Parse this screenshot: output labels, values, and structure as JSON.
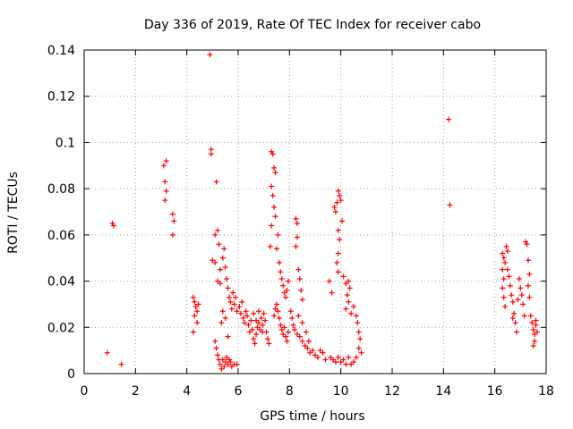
{
  "chart_data": {
    "type": "scatter",
    "title": "Day 336 of 2019, Rate Of TEC Index for receiver cabo",
    "xlabel": "GPS time / hours",
    "ylabel": "ROTI / TECUs",
    "xlim": [
      0,
      18
    ],
    "ylim": [
      0,
      0.14
    ],
    "xticks": [
      0,
      2,
      4,
      6,
      8,
      10,
      12,
      14,
      16,
      18
    ],
    "xtick_labels": [
      "0",
      "2",
      "4",
      "6",
      "8",
      "10",
      "12",
      "14",
      "16",
      "18"
    ],
    "yticks": [
      0,
      0.02,
      0.04,
      0.06,
      0.08,
      0.1,
      0.12,
      0.14
    ],
    "ytick_labels": [
      "0",
      "0.02",
      "0.04",
      "0.06",
      "0.08",
      "0.1",
      "0.12",
      "0.14"
    ],
    "grid": true,
    "marker": "+",
    "color": "#ff0000",
    "series": [
      {
        "name": "ROTI",
        "points": [
          [
            0.9,
            0.009
          ],
          [
            1.1,
            0.065
          ],
          [
            1.15,
            0.064
          ],
          [
            1.45,
            0.004
          ],
          [
            3.1,
            0.09
          ],
          [
            3.15,
            0.083
          ],
          [
            3.2,
            0.079
          ],
          [
            3.15,
            0.075
          ],
          [
            3.2,
            0.092
          ],
          [
            3.45,
            0.069
          ],
          [
            3.5,
            0.066
          ],
          [
            3.45,
            0.06
          ],
          [
            4.25,
            0.033
          ],
          [
            4.3,
            0.031
          ],
          [
            4.35,
            0.029
          ],
          [
            4.4,
            0.027
          ],
          [
            4.3,
            0.025
          ],
          [
            4.25,
            0.018
          ],
          [
            4.4,
            0.022
          ],
          [
            4.45,
            0.03
          ],
          [
            4.9,
            0.138
          ],
          [
            4.95,
            0.097
          ],
          [
            4.95,
            0.095
          ],
          [
            5.0,
            0.049
          ],
          [
            5.1,
            0.06
          ],
          [
            5.15,
            0.083
          ],
          [
            5.2,
            0.062
          ],
          [
            5.25,
            0.056
          ],
          [
            5.1,
            0.048
          ],
          [
            5.2,
            0.04
          ],
          [
            5.3,
            0.045
          ],
          [
            5.3,
            0.039
          ],
          [
            5.4,
            0.05
          ],
          [
            5.45,
            0.054
          ],
          [
            5.5,
            0.046
          ],
          [
            5.55,
            0.041
          ],
          [
            5.6,
            0.037
          ],
          [
            5.65,
            0.033
          ],
          [
            5.7,
            0.031
          ],
          [
            5.75,
            0.028
          ],
          [
            5.8,
            0.035
          ],
          [
            5.85,
            0.03
          ],
          [
            5.9,
            0.033
          ],
          [
            5.95,
            0.027
          ],
          [
            5.1,
            0.014
          ],
          [
            5.15,
            0.011
          ],
          [
            5.2,
            0.008
          ],
          [
            5.25,
            0.006
          ],
          [
            5.3,
            0.004
          ],
          [
            5.35,
            0.002
          ],
          [
            5.4,
            0.006
          ],
          [
            5.45,
            0.003
          ],
          [
            5.5,
            0.005
          ],
          [
            5.55,
            0.007
          ],
          [
            5.6,
            0.004
          ],
          [
            5.65,
            0.006
          ],
          [
            5.7,
            0.005
          ],
          [
            5.75,
            0.003
          ],
          [
            5.85,
            0.004
          ],
          [
            5.95,
            0.004
          ],
          [
            5.35,
            0.022
          ],
          [
            5.4,
            0.027
          ],
          [
            5.5,
            0.024
          ],
          [
            5.6,
            0.016
          ],
          [
            6.05,
            0.029
          ],
          [
            6.1,
            0.026
          ],
          [
            6.15,
            0.031
          ],
          [
            6.2,
            0.024
          ],
          [
            6.25,
            0.022
          ],
          [
            6.3,
            0.027
          ],
          [
            6.35,
            0.025
          ],
          [
            6.4,
            0.021
          ],
          [
            6.45,
            0.018
          ],
          [
            6.5,
            0.023
          ],
          [
            6.55,
            0.019
          ],
          [
            6.6,
            0.015
          ],
          [
            6.65,
            0.013
          ],
          [
            6.7,
            0.017
          ],
          [
            6.75,
            0.02
          ],
          [
            6.8,
            0.022
          ],
          [
            6.85,
            0.019
          ],
          [
            6.9,
            0.024
          ],
          [
            6.95,
            0.021
          ],
          [
            7.0,
            0.026
          ],
          [
            7.05,
            0.023
          ],
          [
            7.1,
            0.018
          ],
          [
            7.15,
            0.015
          ],
          [
            7.2,
            0.013
          ],
          [
            6.6,
            0.026
          ],
          [
            6.7,
            0.023
          ],
          [
            6.8,
            0.027
          ],
          [
            6.95,
            0.018
          ],
          [
            7.25,
            0.055
          ],
          [
            7.3,
            0.096
          ],
          [
            7.35,
            0.095
          ],
          [
            7.4,
            0.089
          ],
          [
            7.45,
            0.087
          ],
          [
            7.3,
            0.081
          ],
          [
            7.35,
            0.077
          ],
          [
            7.4,
            0.072
          ],
          [
            7.45,
            0.068
          ],
          [
            7.3,
            0.064
          ],
          [
            7.5,
            0.054
          ],
          [
            7.55,
            0.06
          ],
          [
            7.6,
            0.048
          ],
          [
            7.65,
            0.044
          ],
          [
            7.7,
            0.041
          ],
          [
            7.75,
            0.038
          ],
          [
            7.8,
            0.035
          ],
          [
            7.85,
            0.033
          ],
          [
            7.9,
            0.036
          ],
          [
            7.95,
            0.04
          ],
          [
            7.5,
            0.03
          ],
          [
            7.55,
            0.027
          ],
          [
            7.6,
            0.024
          ],
          [
            7.65,
            0.021
          ],
          [
            7.7,
            0.019
          ],
          [
            7.75,
            0.017
          ],
          [
            7.8,
            0.02
          ],
          [
            7.85,
            0.016
          ],
          [
            7.9,
            0.014
          ],
          [
            7.95,
            0.018
          ],
          [
            7.4,
            0.025
          ],
          [
            7.45,
            0.028
          ],
          [
            8.25,
            0.067
          ],
          [
            8.3,
            0.065
          ],
          [
            8.3,
            0.059
          ],
          [
            8.25,
            0.055
          ],
          [
            8.35,
            0.045
          ],
          [
            8.4,
            0.041
          ],
          [
            8.45,
            0.036
          ],
          [
            8.5,
            0.032
          ],
          [
            8.05,
            0.027
          ],
          [
            8.1,
            0.024
          ],
          [
            8.15,
            0.021
          ],
          [
            8.2,
            0.019
          ],
          [
            8.3,
            0.017
          ],
          [
            8.4,
            0.016
          ],
          [
            8.5,
            0.014
          ],
          [
            8.6,
            0.012
          ],
          [
            8.7,
            0.011
          ],
          [
            8.8,
            0.009
          ],
          [
            8.9,
            0.01
          ],
          [
            9.0,
            0.008
          ],
          [
            9.1,
            0.007
          ],
          [
            9.2,
            0.01
          ],
          [
            9.3,
            0.009
          ],
          [
            9.4,
            0.006
          ],
          [
            8.35,
            0.025
          ],
          [
            8.5,
            0.022
          ],
          [
            8.65,
            0.018
          ],
          [
            8.75,
            0.014
          ],
          [
            9.55,
            0.04
          ],
          [
            9.65,
            0.035
          ],
          [
            9.75,
            0.072
          ],
          [
            9.8,
            0.07
          ],
          [
            9.85,
            0.074
          ],
          [
            9.9,
            0.079
          ],
          [
            9.95,
            0.077
          ],
          [
            10.0,
            0.075
          ],
          [
            10.05,
            0.066
          ],
          [
            9.9,
            0.062
          ],
          [
            9.95,
            0.058
          ],
          [
            9.9,
            0.052
          ],
          [
            9.85,
            0.048
          ],
          [
            9.9,
            0.044
          ],
          [
            10.1,
            0.042
          ],
          [
            10.2,
            0.039
          ],
          [
            10.3,
            0.04
          ],
          [
            10.35,
            0.037
          ],
          [
            10.25,
            0.034
          ],
          [
            10.3,
            0.031
          ],
          [
            10.2,
            0.028
          ],
          [
            10.4,
            0.026
          ],
          [
            10.5,
            0.029
          ],
          [
            10.6,
            0.025
          ],
          [
            10.65,
            0.022
          ],
          [
            10.7,
            0.018
          ],
          [
            10.75,
            0.015
          ],
          [
            10.7,
            0.011
          ],
          [
            10.8,
            0.009
          ],
          [
            10.6,
            0.007
          ],
          [
            10.5,
            0.005
          ],
          [
            10.4,
            0.004
          ],
          [
            9.6,
            0.007
          ],
          [
            9.7,
            0.006
          ],
          [
            9.8,
            0.005
          ],
          [
            9.9,
            0.007
          ],
          [
            10.0,
            0.005
          ],
          [
            10.1,
            0.006
          ],
          [
            10.2,
            0.004
          ],
          [
            10.3,
            0.007
          ],
          [
            14.2,
            0.11
          ],
          [
            14.25,
            0.073
          ],
          [
            16.3,
            0.052
          ],
          [
            16.35,
            0.05
          ],
          [
            16.4,
            0.048
          ],
          [
            16.45,
            0.055
          ],
          [
            16.5,
            0.053
          ],
          [
            16.3,
            0.045
          ],
          [
            16.35,
            0.041
          ],
          [
            16.3,
            0.037
          ],
          [
            16.35,
            0.033
          ],
          [
            16.4,
            0.029
          ],
          [
            16.5,
            0.045
          ],
          [
            16.55,
            0.042
          ],
          [
            16.6,
            0.038
          ],
          [
            16.65,
            0.034
          ],
          [
            16.7,
            0.031
          ],
          [
            16.75,
            0.026
          ],
          [
            16.7,
            0.024
          ],
          [
            16.8,
            0.022
          ],
          [
            16.85,
            0.018
          ],
          [
            16.9,
            0.032
          ],
          [
            16.95,
            0.041
          ],
          [
            17.0,
            0.037
          ],
          [
            17.05,
            0.034
          ],
          [
            17.1,
            0.03
          ],
          [
            17.15,
            0.025
          ],
          [
            17.2,
            0.057
          ],
          [
            17.25,
            0.056
          ],
          [
            17.3,
            0.049
          ],
          [
            17.35,
            0.043
          ],
          [
            17.3,
            0.038
          ],
          [
            17.35,
            0.033
          ],
          [
            17.4,
            0.025
          ],
          [
            17.45,
            0.022
          ],
          [
            17.5,
            0.019
          ],
          [
            17.55,
            0.017
          ],
          [
            17.6,
            0.021
          ],
          [
            17.65,
            0.018
          ],
          [
            17.55,
            0.014
          ],
          [
            17.5,
            0.012
          ],
          [
            17.6,
            0.023
          ]
        ]
      }
    ]
  }
}
